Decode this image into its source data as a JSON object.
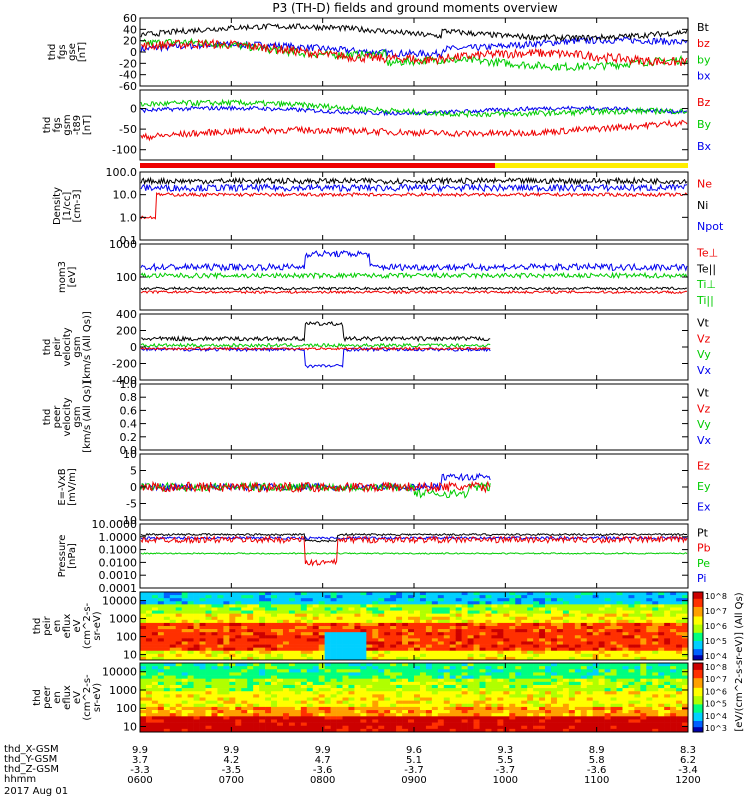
{
  "title": "P3 (TH-D) fields and ground moments overview",
  "chart_data": [
    {
      "type": "line",
      "ylabel": [
        "thd",
        "fgs",
        "gse",
        "[nT]"
      ],
      "ylim": [
        -60,
        60
      ],
      "yticks": [
        "60",
        "40",
        "20",
        "0",
        "-20",
        "-40",
        "-60"
      ],
      "legend": [
        {
          "label": "Bt",
          "color": "#000000"
        },
        {
          "label": "bz",
          "color": "#ee0000"
        },
        {
          "label": "by",
          "color": "#00cc00"
        },
        {
          "label": "bx",
          "color": "#0000ee"
        }
      ]
    },
    {
      "type": "line",
      "ylabel": [
        "thd",
        "fgs",
        "gsm",
        "-t89",
        "[nT]"
      ],
      "ylim": [
        -125,
        45
      ],
      "yticks": [
        "0",
        "-50",
        "-100"
      ],
      "legend": [
        {
          "label": "Bz",
          "color": "#ee0000"
        },
        {
          "label": "By",
          "color": "#00cc00"
        },
        {
          "label": "Bx",
          "color": "#0000ee"
        }
      ]
    },
    {
      "type": "line",
      "ylabel": [
        "Density",
        "[1/cc]",
        "[cm-3]"
      ],
      "scale": "log",
      "ylim": [
        0.1,
        100.0
      ],
      "yticks": [
        "100.0",
        "10.0",
        "1.0",
        "0.1"
      ],
      "legend": [
        {
          "label": "Ne",
          "color": "#ee0000"
        },
        {
          "label": "Ni",
          "color": "#000000"
        },
        {
          "label": "Npot",
          "color": "#0000ee"
        }
      ]
    },
    {
      "type": "line",
      "ylabel": [
        "mom3",
        "[eV]"
      ],
      "scale": "log",
      "ylim": [
        10,
        1000
      ],
      "yticks": [
        "1000",
        "100"
      ],
      "legend": [
        {
          "label": "Te⊥",
          "color": "#ee0000"
        },
        {
          "label": "Te||",
          "color": "#000000"
        },
        {
          "label": "Ti⊥",
          "color": "#00cc00"
        },
        {
          "label": "Ti||",
          "color": "#00cc00"
        }
      ]
    },
    {
      "type": "line",
      "ylabel": [
        "thd",
        "peir",
        "velocity",
        "gsm",
        "[km/s (All Qs)]"
      ],
      "ylim": [
        -400,
        400
      ],
      "yticks": [
        "400",
        "200",
        "0",
        "-200",
        "-400"
      ],
      "legend": [
        {
          "label": "Vt",
          "color": "#000000"
        },
        {
          "label": "Vz",
          "color": "#ee0000"
        },
        {
          "label": "Vy",
          "color": "#00cc00"
        },
        {
          "label": "Vx",
          "color": "#0000ee"
        }
      ]
    },
    {
      "type": "line",
      "ylabel": [
        "thd",
        "peer",
        "velocity",
        "gsm",
        "[km/s (All Qs)]"
      ],
      "ylim": [
        0.0,
        1.0
      ],
      "yticks": [
        "1.0",
        "0.8",
        "0.6",
        "0.4",
        "0.2",
        "0.0"
      ],
      "legend": [
        {
          "label": "Vt",
          "color": "#000000"
        },
        {
          "label": "Vz",
          "color": "#ee0000"
        },
        {
          "label": "Vy",
          "color": "#00cc00"
        },
        {
          "label": "Vx",
          "color": "#0000ee"
        }
      ]
    },
    {
      "type": "line",
      "ylabel": [
        "E=-VxB",
        "[mV/m]"
      ],
      "ylim": [
        -10,
        10
      ],
      "yticks": [
        "10",
        "5",
        "0",
        "-5",
        "-10"
      ],
      "legend": [
        {
          "label": "Ez",
          "color": "#ee0000"
        },
        {
          "label": "Ey",
          "color": "#00cc00"
        },
        {
          "label": "Ex",
          "color": "#0000ee"
        }
      ]
    },
    {
      "type": "line",
      "ylabel": [
        "Pressure",
        "[nPa]"
      ],
      "scale": "log",
      "ylim": [
        0.0001,
        10.0
      ],
      "yticks": [
        "10.0000",
        "1.0000",
        "0.1000",
        "0.0100",
        "0.0010",
        "0.0001"
      ],
      "legend": [
        {
          "label": "Pt",
          "color": "#000000"
        },
        {
          "label": "Pb",
          "color": "#ee0000"
        },
        {
          "label": "Pe",
          "color": "#00cc00"
        },
        {
          "label": "Pi",
          "color": "#0000ee"
        }
      ]
    },
    {
      "type": "heatmap",
      "ylabel": [
        "thd",
        "peir",
        "en",
        "eflux",
        "eV",
        "(cm^2-s-",
        "sr-eV)"
      ],
      "scale": "log",
      "ylim": [
        5,
        30000
      ],
      "yticks": [
        "10000",
        "1000",
        "100",
        "10"
      ]
    },
    {
      "type": "heatmap",
      "ylabel": [
        "thd",
        "peer",
        "en",
        "eflux",
        "eV",
        "(cm^2-s-",
        "sr-eV)"
      ],
      "scale": "log",
      "ylim": [
        5,
        30000
      ],
      "yticks": [
        "10000",
        "1000",
        "100",
        "10"
      ]
    }
  ],
  "colorbar": {
    "upper_ticks": [
      "10^8",
      "10^7",
      "10^6",
      "10^5",
      "10^4"
    ],
    "lower_ticks": [
      "10^8",
      "10^7",
      "10^6",
      "10^5",
      "10^4",
      "10^3"
    ],
    "label": "[eV/(cm^2-s-sr-eV)] (All Qs)"
  },
  "x_axis": {
    "labels": [
      "0600",
      "0700",
      "0800",
      "0900",
      "1000",
      "1100",
      "1200"
    ],
    "rows": [
      {
        "name": "thd_X-GSM",
        "values": [
          "9.9",
          "9.9",
          "9.9",
          "9.6",
          "9.3",
          "8.9",
          "8.3"
        ]
      },
      {
        "name": "thd_Y-GSM",
        "values": [
          "3.7",
          "4.2",
          "4.7",
          "5.1",
          "5.5",
          "5.8",
          "6.2"
        ]
      },
      {
        "name": "thd_Z-GSM",
        "values": [
          "-3.3",
          "-3.5",
          "-3.6",
          "-3.7",
          "-3.7",
          "-3.6",
          "-3.4"
        ]
      }
    ],
    "hhmm_label": "hhmm",
    "date": "2017 Aug 01"
  }
}
